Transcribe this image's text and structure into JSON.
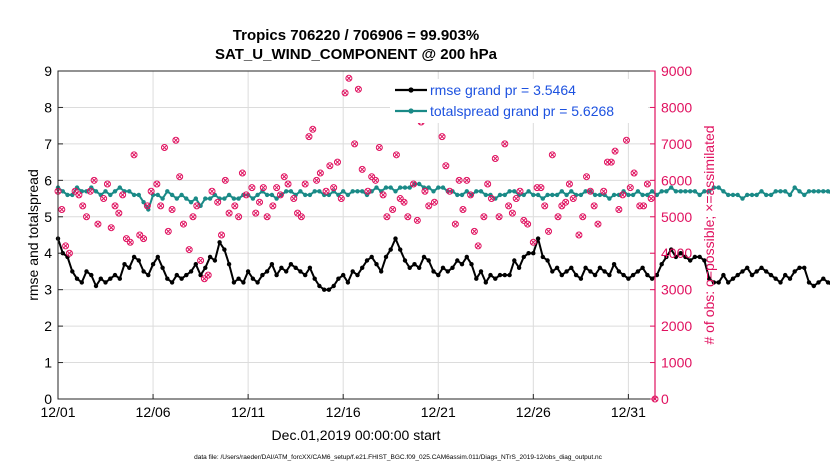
{
  "chart_data": {
    "type": "line",
    "title": "Tropics 706220 / 706906 = 99.903%",
    "subtitle": "SAT_U_WIND_COMPONENT @ 200 hPa",
    "xlabel": "Dec.01,2019 00:00:00 start",
    "ylabel_left": "rmse and totalspread",
    "ylabel_right": "# of obs: o=possible; ×=assimilated",
    "footer": "data file: /Users/raeder/DAI/ATM_forcXX/CAM6_setup/f.e21.FHIST_BGC.f09_025.CAM6assim.011/Diags_NTrS_2019-12/obs_diag_output.nc",
    "x_range": [
      0,
      31.4
    ],
    "ylim_left": [
      0,
      9
    ],
    "ylim_right": [
      0,
      9000
    ],
    "x_ticks": [
      {
        "value": 0,
        "label": "12/01"
      },
      {
        "value": 5,
        "label": "12/06"
      },
      {
        "value": 10,
        "label": "12/11"
      },
      {
        "value": 15,
        "label": "12/16"
      },
      {
        "value": 20,
        "label": "12/21"
      },
      {
        "value": 25,
        "label": "12/26"
      },
      {
        "value": 30,
        "label": "12/31"
      }
    ],
    "y_ticks_left": [
      "0",
      "1",
      "2",
      "3",
      "4",
      "5",
      "6",
      "7",
      "8",
      "9"
    ],
    "y_ticks_right": [
      "0",
      "1000",
      "2000",
      "3000",
      "4000",
      "5000",
      "6000",
      "7000",
      "8000",
      "9000"
    ],
    "colors": {
      "rmse": "#000000",
      "totalspread": "#1a8a87",
      "obs": "#e0115f",
      "legend_text": "#1d52e0",
      "axis": "#262626",
      "grid": "#dcdcdc"
    },
    "legend": [
      {
        "name": "rmse grand pr = 3.5464",
        "series": "rmse"
      },
      {
        "name": "totalspread grand pr = 5.6268",
        "series": "totalspread"
      }
    ],
    "series": [
      {
        "name": "rmse",
        "axis": "left",
        "x0": 0,
        "dx": 0.25,
        "values": [
          4.4,
          4.0,
          3.9,
          3.5,
          3.3,
          3.2,
          3.5,
          3.4,
          3.1,
          3.3,
          3.2,
          3.3,
          3.4,
          3.3,
          3.7,
          3.6,
          3.9,
          3.8,
          3.5,
          3.4,
          3.7,
          3.9,
          3.6,
          3.3,
          3.2,
          3.4,
          3.3,
          3.4,
          3.5,
          3.7,
          3.4,
          3.6,
          3.9,
          3.8,
          4.3,
          4.1,
          3.7,
          3.2,
          3.3,
          3.2,
          3.5,
          3.3,
          3.2,
          3.4,
          3.5,
          3.7,
          3.4,
          3.6,
          3.5,
          3.7,
          3.6,
          3.5,
          3.4,
          3.6,
          3.3,
          3.1,
          3.0,
          3.0,
          3.1,
          3.3,
          3.4,
          3.2,
          3.5,
          3.4,
          3.6,
          3.8,
          3.9,
          3.7,
          3.5,
          3.9,
          4.1,
          4.4,
          4.1,
          3.8,
          3.6,
          3.7,
          3.6,
          3.9,
          3.8,
          3.5,
          3.4,
          3.6,
          3.5,
          3.6,
          3.8,
          3.7,
          3.9,
          3.7,
          3.3,
          3.5,
          3.2,
          3.4,
          3.3,
          3.4,
          3.4,
          3.4,
          3.8,
          3.6,
          3.9,
          4.0,
          4.0,
          4.4,
          3.9,
          3.8,
          3.5,
          3.6,
          3.4,
          3.5,
          3.6,
          3.4,
          3.3,
          3.6,
          3.5,
          3.4,
          3.6,
          3.5,
          3.4,
          3.7,
          3.5,
          3.4,
          3.3,
          3.4,
          3.5,
          3.6,
          3.4,
          3.3,
          3.4,
          3.7,
          3.9,
          4.1,
          3.9,
          4.0,
          3.9,
          3.8,
          3.9,
          3.9,
          3.8,
          3.3,
          3.2,
          3.2,
          3.4,
          3.2,
          3.3,
          3.4,
          3.5,
          3.6,
          3.4,
          3.5,
          3.6,
          3.5,
          3.4,
          3.3,
          3.2,
          3.4,
          3.3,
          3.5,
          3.6,
          3.6,
          3.2,
          3.1,
          3.2,
          3.3,
          3.2,
          3.1,
          3.2,
          3.3,
          3.3,
          3.4,
          3.4,
          3.3,
          3.5,
          3.4,
          3.4,
          3.5,
          3.4,
          3.4
        ]
      },
      {
        "name": "totalspread",
        "axis": "left",
        "x0": 0,
        "dx": 0.25,
        "values": [
          5.8,
          5.7,
          5.6,
          5.6,
          5.8,
          5.7,
          5.7,
          5.8,
          5.7,
          5.6,
          5.7,
          5.6,
          5.7,
          5.8,
          5.7,
          5.7,
          5.6,
          5.6,
          5.4,
          5.2,
          5.6,
          5.6,
          5.5,
          5.7,
          5.6,
          5.5,
          5.6,
          5.5,
          5.4,
          5.5,
          5.3,
          5.5,
          5.5,
          5.6,
          5.5,
          5.5,
          5.6,
          5.5,
          5.5,
          5.6,
          5.6,
          5.5,
          5.6,
          5.7,
          5.6,
          5.6,
          5.5,
          5.6,
          5.7,
          5.7,
          5.6,
          5.7,
          5.6,
          5.6,
          5.7,
          5.7,
          5.6,
          5.6,
          5.7,
          5.6,
          5.7,
          5.6,
          5.7,
          5.7,
          5.7,
          5.6,
          5.7,
          5.8,
          5.7,
          5.8,
          5.8,
          5.7,
          5.8,
          5.8,
          5.8,
          5.9,
          5.9,
          5.8,
          5.8,
          5.7,
          5.8,
          5.8,
          5.7,
          5.7,
          5.6,
          5.6,
          5.7,
          5.6,
          5.7,
          5.7,
          5.6,
          5.6,
          5.5,
          5.6,
          5.6,
          5.7,
          5.7,
          5.6,
          5.6,
          5.7,
          5.6,
          5.6,
          5.5,
          5.6,
          5.6,
          5.6,
          5.7,
          5.6,
          5.7,
          5.6,
          5.6,
          5.7,
          5.7,
          5.6,
          5.6,
          5.6,
          5.5,
          5.6,
          5.6,
          5.7,
          5.6,
          5.6,
          5.7,
          5.6,
          5.6,
          5.7,
          5.6,
          5.7,
          5.7,
          5.8,
          5.7,
          5.7,
          5.7,
          5.7,
          5.7,
          5.6,
          5.7,
          5.7,
          5.8,
          5.8,
          5.7,
          5.6,
          5.6,
          5.6,
          5.5,
          5.6,
          5.6,
          5.6,
          5.7,
          5.6,
          5.6,
          5.7,
          5.7,
          5.7,
          5.6,
          5.8,
          5.7,
          5.6,
          5.7,
          5.7,
          5.7,
          5.7,
          5.7,
          5.6,
          5.7,
          5.7,
          5.8,
          5.7,
          5.7,
          5.7,
          5.6,
          5.6,
          5.7,
          5.7,
          5.6,
          5.7,
          5.6,
          5.6,
          5.7
        ]
      },
      {
        "name": "obs_possible",
        "axis": "right",
        "points": [
          [
            0,
            5700
          ],
          [
            0.2,
            5200
          ],
          [
            0.4,
            4200
          ],
          [
            0.6,
            4000
          ],
          [
            0.9,
            5700
          ],
          [
            1.1,
            5600
          ],
          [
            1.3,
            5300
          ],
          [
            1.5,
            5000
          ],
          [
            1.7,
            5700
          ],
          [
            1.9,
            6000
          ],
          [
            2.1,
            4800
          ],
          [
            2.4,
            5500
          ],
          [
            2.6,
            5900
          ],
          [
            2.8,
            4700
          ],
          [
            3.0,
            5300
          ],
          [
            3.2,
            5100
          ],
          [
            3.4,
            5600
          ],
          [
            3.6,
            4400
          ],
          [
            3.8,
            4300
          ],
          [
            4.0,
            6700
          ],
          [
            4.3,
            4500
          ],
          [
            4.5,
            4400
          ],
          [
            4.7,
            5300
          ],
          [
            4.9,
            5700
          ],
          [
            5.2,
            5900
          ],
          [
            5.4,
            5300
          ],
          [
            5.6,
            6900
          ],
          [
            5.8,
            4600
          ],
          [
            6.0,
            5200
          ],
          [
            6.2,
            7100
          ],
          [
            6.4,
            6100
          ],
          [
            6.6,
            4800
          ],
          [
            6.9,
            4100
          ],
          [
            7.1,
            5000
          ],
          [
            7.3,
            5300
          ],
          [
            7.5,
            3800
          ],
          [
            7.7,
            3300
          ],
          [
            7.9,
            3400
          ],
          [
            8.1,
            5700
          ],
          [
            8.4,
            5400
          ],
          [
            8.6,
            4500
          ],
          [
            8.8,
            6000
          ],
          [
            9.0,
            5100
          ],
          [
            9.3,
            5300
          ],
          [
            9.5,
            5000
          ],
          [
            9.7,
            6200
          ],
          [
            9.9,
            5600
          ],
          [
            10.2,
            5800
          ],
          [
            10.4,
            5100
          ],
          [
            10.6,
            5400
          ],
          [
            10.8,
            5800
          ],
          [
            11.0,
            5000
          ],
          [
            11.3,
            5300
          ],
          [
            11.5,
            5800
          ],
          [
            11.7,
            5600
          ],
          [
            11.9,
            6100
          ],
          [
            12.1,
            5900
          ],
          [
            12.4,
            5500
          ],
          [
            12.6,
            5100
          ],
          [
            12.8,
            5000
          ],
          [
            13.0,
            5900
          ],
          [
            13.2,
            7200
          ],
          [
            13.4,
            7400
          ],
          [
            13.6,
            6000
          ],
          [
            13.8,
            6200
          ],
          [
            14.1,
            5700
          ],
          [
            14.3,
            6400
          ],
          [
            14.5,
            5800
          ],
          [
            14.7,
            6500
          ],
          [
            14.9,
            5500
          ],
          [
            15.1,
            8400
          ],
          [
            15.3,
            8800
          ],
          [
            15.6,
            7000
          ],
          [
            15.8,
            8500
          ],
          [
            16.0,
            6300
          ],
          [
            16.3,
            5700
          ],
          [
            16.5,
            6100
          ],
          [
            16.7,
            6000
          ],
          [
            16.9,
            6900
          ],
          [
            17.1,
            5600
          ],
          [
            17.3,
            5000
          ],
          [
            17.6,
            5200
          ],
          [
            17.8,
            6700
          ],
          [
            18.0,
            5500
          ],
          [
            18.2,
            5400
          ],
          [
            18.4,
            5000
          ],
          [
            18.7,
            5900
          ],
          [
            18.9,
            4900
          ],
          [
            19.1,
            7600
          ],
          [
            19.3,
            5700
          ],
          [
            19.5,
            5300
          ],
          [
            19.8,
            5400
          ],
          [
            20.0,
            8500
          ],
          [
            20.2,
            7200
          ],
          [
            20.4,
            6400
          ],
          [
            20.6,
            5700
          ],
          [
            20.9,
            4800
          ],
          [
            21.1,
            6000
          ],
          [
            21.3,
            5200
          ],
          [
            21.5,
            6000
          ],
          [
            21.7,
            5600
          ],
          [
            21.9,
            4600
          ],
          [
            22.1,
            4200
          ],
          [
            22.4,
            5000
          ],
          [
            22.6,
            5900
          ],
          [
            22.8,
            5500
          ],
          [
            23.0,
            6600
          ],
          [
            23.2,
            5000
          ],
          [
            23.5,
            7000
          ],
          [
            23.7,
            5300
          ],
          [
            23.9,
            5100
          ],
          [
            24.1,
            5500
          ],
          [
            24.3,
            5700
          ],
          [
            24.5,
            4900
          ],
          [
            24.7,
            4800
          ],
          [
            25.0,
            4300
          ],
          [
            25.2,
            5800
          ],
          [
            25.4,
            5800
          ],
          [
            25.6,
            5300
          ],
          [
            25.8,
            4600
          ],
          [
            26.0,
            6700
          ],
          [
            26.3,
            5000
          ],
          [
            26.5,
            5300
          ],
          [
            26.7,
            5400
          ],
          [
            26.9,
            5900
          ],
          [
            27.1,
            5500
          ],
          [
            27.4,
            4500
          ],
          [
            27.6,
            5000
          ],
          [
            27.8,
            6100
          ],
          [
            28.0,
            5700
          ],
          [
            28.2,
            5300
          ],
          [
            28.4,
            4800
          ],
          [
            28.7,
            5700
          ],
          [
            28.9,
            6500
          ],
          [
            29.1,
            6500
          ],
          [
            29.3,
            6800
          ],
          [
            29.5,
            5200
          ],
          [
            29.7,
            5600
          ],
          [
            29.9,
            7100
          ],
          [
            30.1,
            5800
          ],
          [
            30.3,
            6200
          ],
          [
            30.6,
            5300
          ],
          [
            30.8,
            5300
          ],
          [
            31.0,
            5900
          ],
          [
            31.2,
            5500
          ],
          [
            31.4,
            0
          ]
        ]
      }
    ]
  }
}
